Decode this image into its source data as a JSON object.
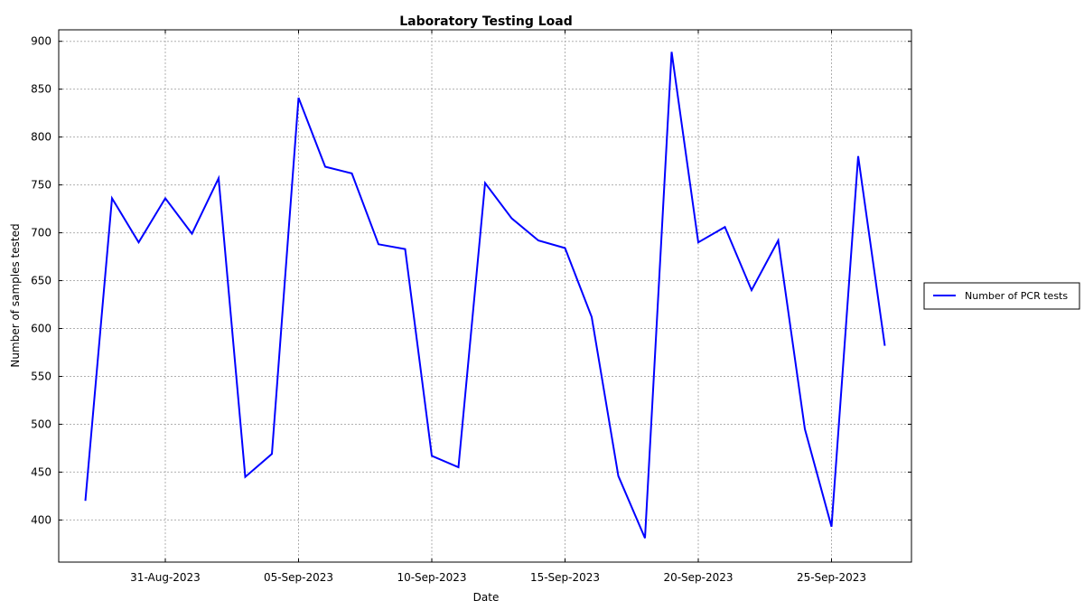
{
  "chart_data": {
    "type": "line",
    "title": "Laboratory Testing Load",
    "xlabel": "Date",
    "ylabel": "Number of samples tested",
    "x": [
      "2023-08-28",
      "2023-08-29",
      "2023-08-30",
      "2023-08-31",
      "2023-09-01",
      "2023-09-02",
      "2023-09-03",
      "2023-09-04",
      "2023-09-05",
      "2023-09-06",
      "2023-09-07",
      "2023-09-08",
      "2023-09-09",
      "2023-09-10",
      "2023-09-11",
      "2023-09-12",
      "2023-09-13",
      "2023-09-14",
      "2023-09-15",
      "2023-09-16",
      "2023-09-17",
      "2023-09-18",
      "2023-09-19",
      "2023-09-20",
      "2023-09-21",
      "2023-09-22",
      "2023-09-23",
      "2023-09-24",
      "2023-09-25",
      "2023-09-26",
      "2023-09-27"
    ],
    "series": [
      {
        "name": "Number of PCR tests",
        "color": "#0000ff",
        "values": [
          420,
          736,
          690,
          736,
          699,
          757,
          445,
          469,
          841,
          769,
          762,
          688,
          683,
          467,
          455,
          752,
          715,
          692,
          684,
          612,
          446,
          381,
          889,
          690,
          706,
          640,
          692,
          495,
          393,
          780,
          582
        ]
      }
    ],
    "x_ticks": [
      "31-Aug-2023",
      "05-Sep-2023",
      "10-Sep-2023",
      "15-Sep-2023",
      "20-Sep-2023",
      "25-Sep-2023"
    ],
    "x_tick_dates": [
      "2023-08-31",
      "2023-09-05",
      "2023-09-10",
      "2023-09-15",
      "2023-09-20",
      "2023-09-25"
    ],
    "xlim": [
      "2023-08-27",
      "2023-09-28"
    ],
    "y_ticks": [
      400,
      450,
      500,
      550,
      600,
      650,
      700,
      750,
      800,
      850,
      900
    ],
    "y_tick_labels": [
      "400",
      "450",
      "500",
      "550",
      "600",
      "650",
      "700",
      "750",
      "800",
      "850",
      "900"
    ],
    "ylim": [
      356,
      912
    ],
    "grid": true,
    "legend_position": "right"
  }
}
